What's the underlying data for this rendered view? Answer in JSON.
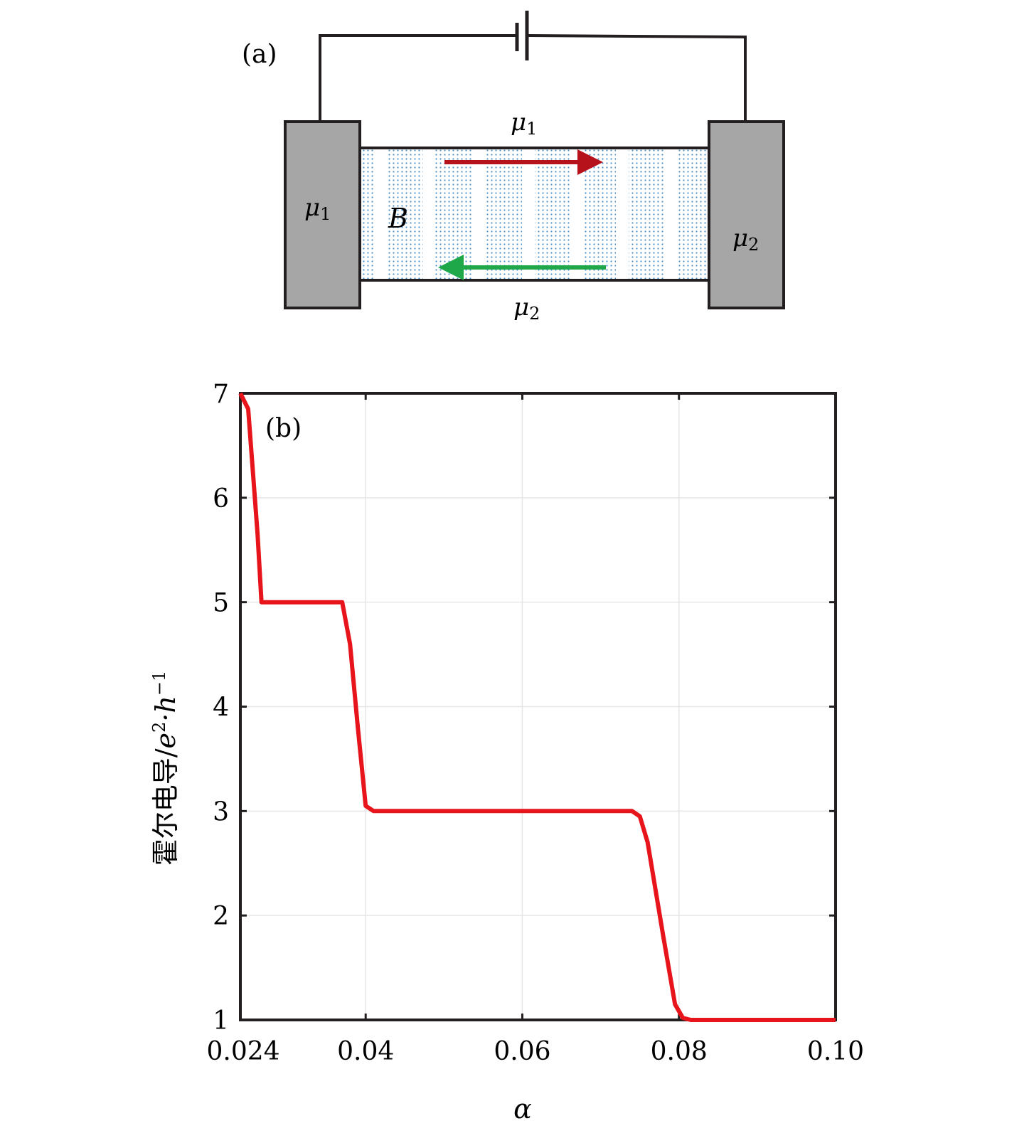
{
  "panel_a": {
    "label": "(a)",
    "left_contact_label": "μ",
    "left_contact_sub": "1",
    "right_contact_label": "μ",
    "right_contact_sub": "2",
    "top_edge_label": "μ",
    "top_edge_sub": "1",
    "bottom_edge_label": "μ",
    "bottom_edge_sub": "2",
    "field_label": "B",
    "colors": {
      "contact": "#a6a6a6",
      "channel_dots": "#4a90c8",
      "arrow_top": "#b5121b",
      "arrow_bottom": "#1ea84a"
    }
  },
  "chart_data": {
    "type": "line",
    "panel_label": "(b)",
    "xlabel": "α",
    "ylabel_text": "霍尔电导/",
    "ylabel_math": "e",
    "ylabel_sup": "2",
    "ylabel_mid": "·h",
    "ylabel_sup2": "−1",
    "xlim": [
      0.024,
      0.1
    ],
    "ylim": [
      1,
      7
    ],
    "x_ticks": [
      0.024,
      0.04,
      0.06,
      0.08,
      0.1
    ],
    "x_tick_labels": [
      "0.024",
      "0.04",
      "0.06",
      "0.08",
      "0.10"
    ],
    "y_ticks": [
      1,
      2,
      3,
      4,
      5,
      6,
      7
    ],
    "y_tick_labels": [
      "1",
      "2",
      "3",
      "4",
      "5",
      "6",
      "7"
    ],
    "grid": true,
    "series": [
      {
        "color": "#e8141c",
        "x": [
          0.024,
          0.025,
          0.0262,
          0.0267,
          0.037,
          0.038,
          0.039,
          0.04,
          0.041,
          0.074,
          0.075,
          0.076,
          0.078,
          0.0795,
          0.0805,
          0.0815,
          0.1
        ],
        "y": [
          7.0,
          6.85,
          5.65,
          5.0,
          5.0,
          4.6,
          3.8,
          3.05,
          3.0,
          3.0,
          2.95,
          2.7,
          1.8,
          1.15,
          1.02,
          1.0,
          1.0
        ]
      }
    ]
  }
}
